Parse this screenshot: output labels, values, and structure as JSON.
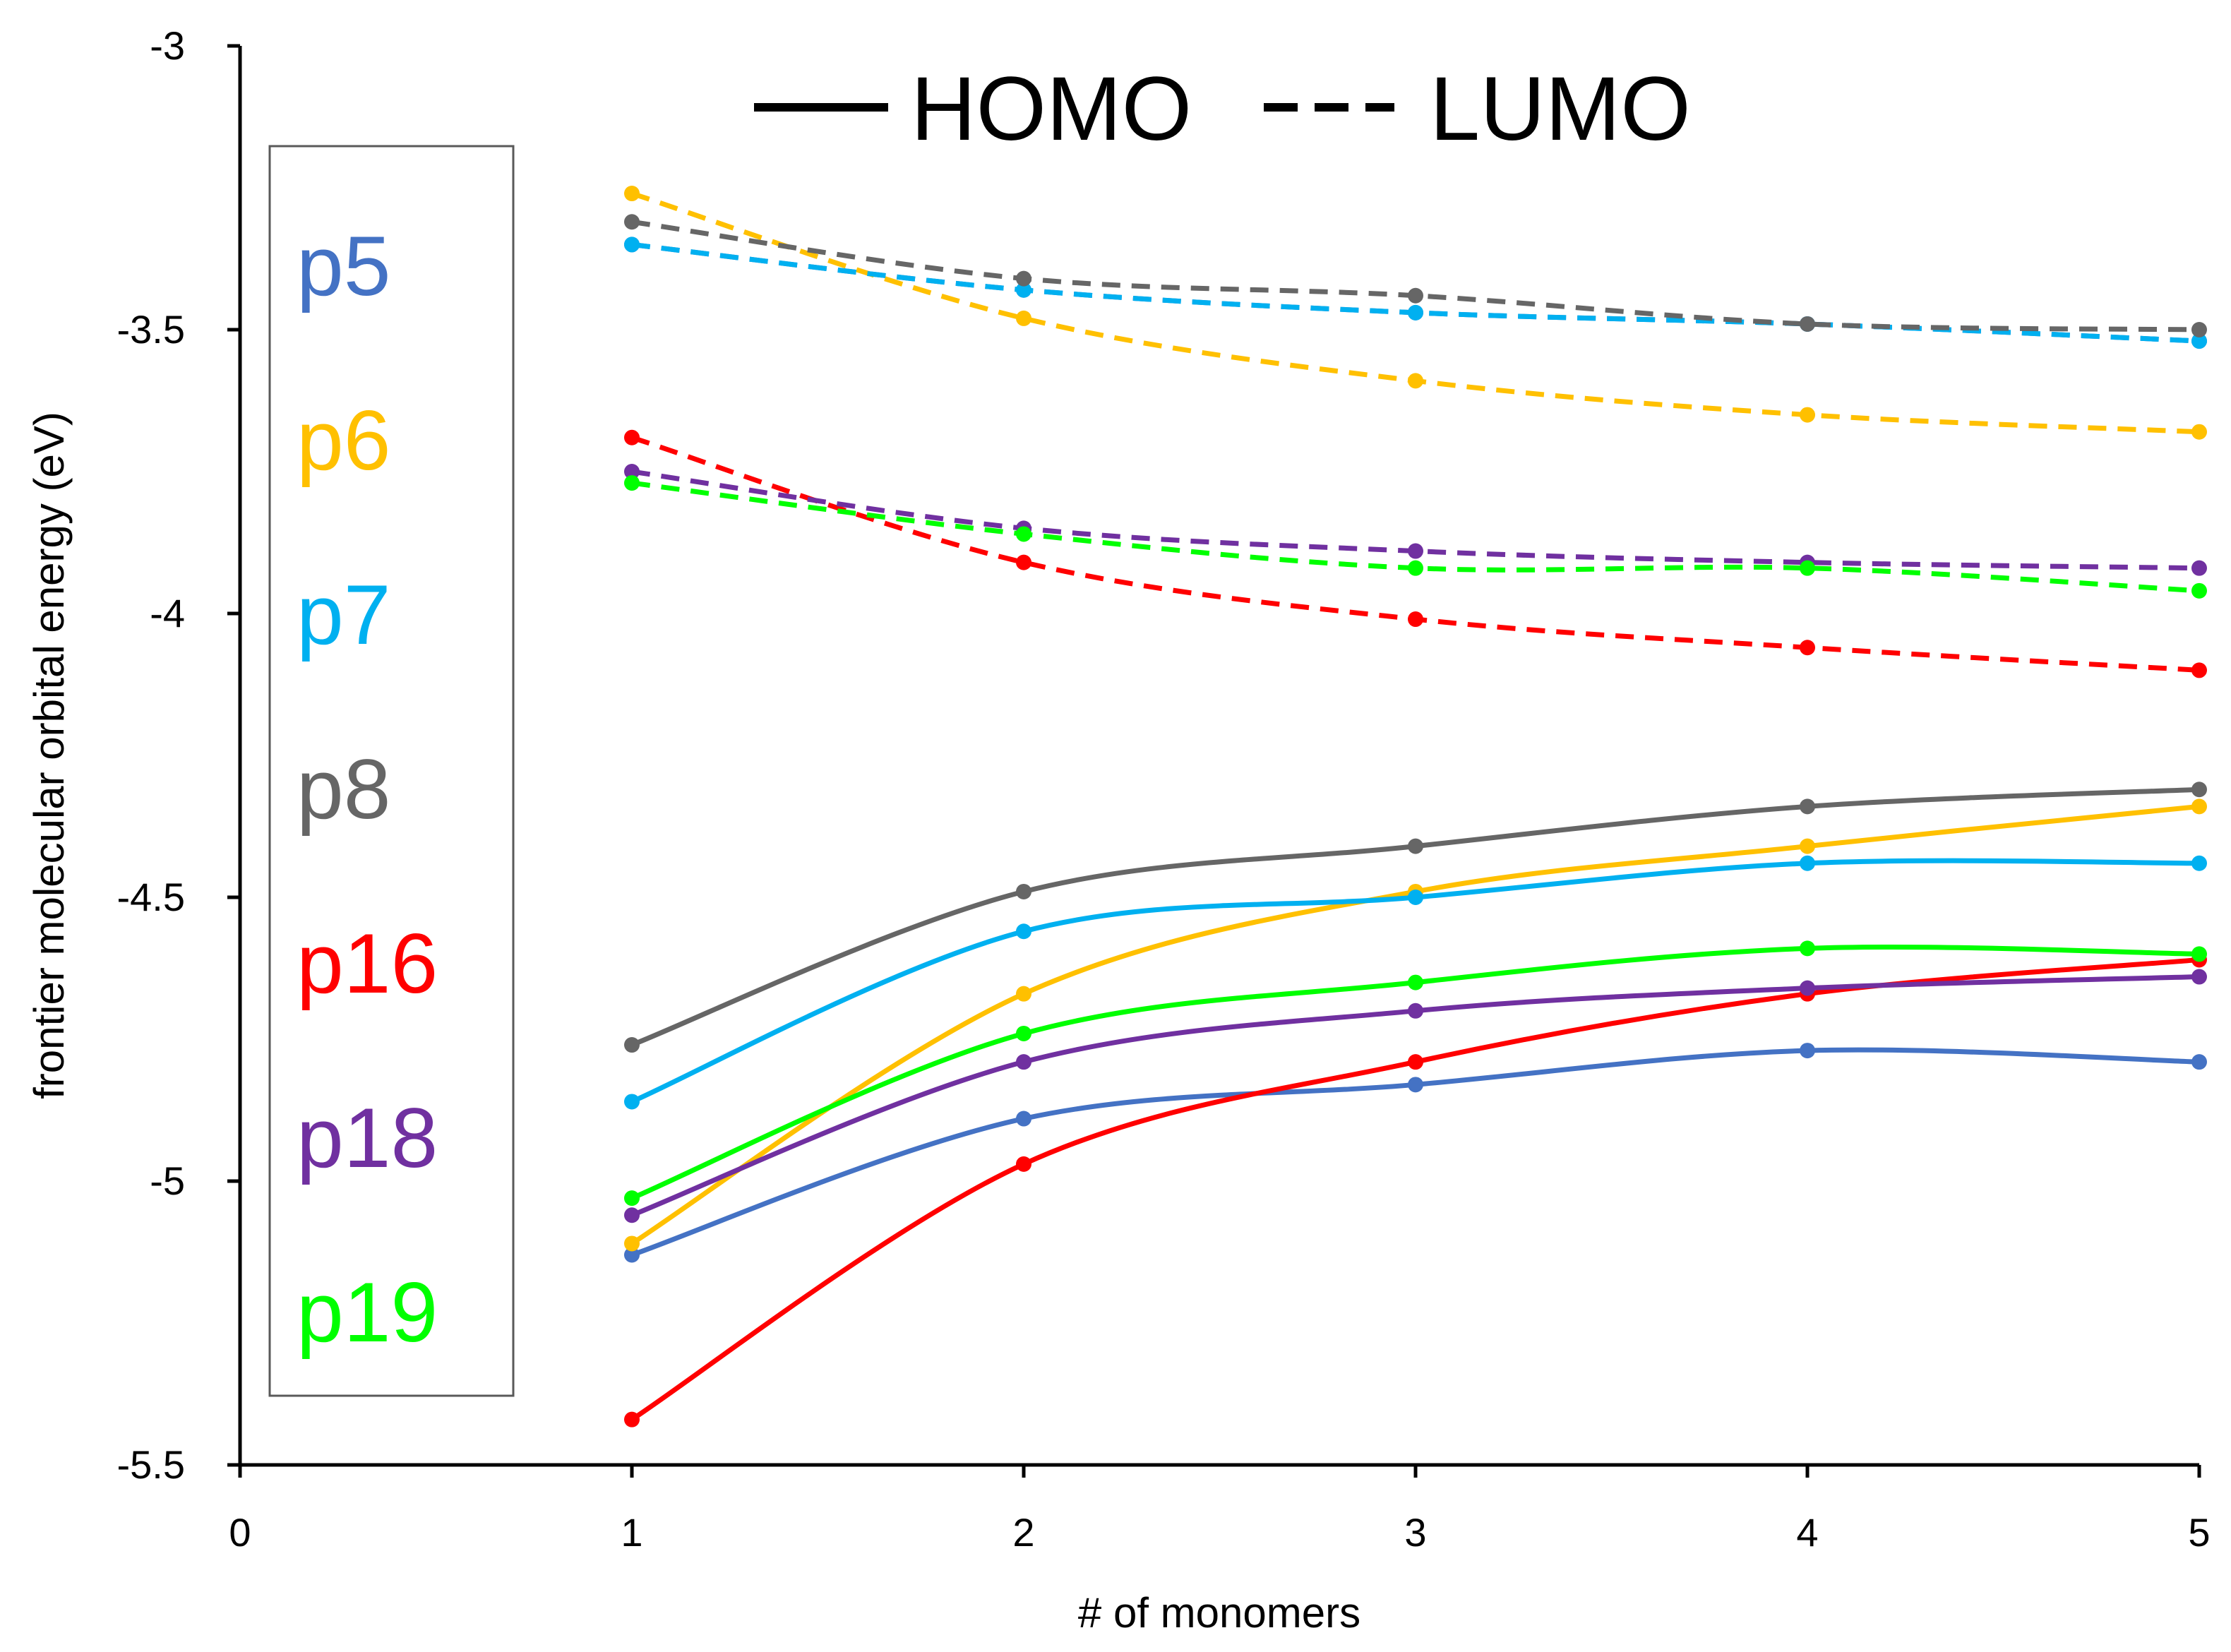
{
  "chart_data": {
    "type": "line",
    "title": "",
    "xlabel": "# of monomers",
    "ylabel": "frontier molecular orbital energy (eV)",
    "xlim": [
      0,
      5
    ],
    "ylim": [
      -5.5,
      -3
    ],
    "x_ticks": [
      "0",
      "1",
      "2",
      "3",
      "4",
      "5"
    ],
    "y_ticks": [
      "-3",
      "-3.5",
      "-4",
      "-4.5",
      "-5",
      "-5.5"
    ],
    "x": [
      1,
      2,
      3,
      4,
      5
    ],
    "line_styles": [
      {
        "label": "HOMO",
        "style": "solid"
      },
      {
        "label": "LUMO",
        "style": "dashed"
      }
    ],
    "series": [
      {
        "name": "p5",
        "color": "#4472C4",
        "homo": [
          -5.13,
          -4.89,
          -4.83,
          -4.77,
          -4.79
        ],
        "lumo": [
          -3.35,
          -3.43,
          -3.47,
          -3.49,
          -3.52
        ]
      },
      {
        "name": "p6",
        "color": "#FFC000",
        "homo": [
          -5.11,
          -4.67,
          -4.49,
          -4.41,
          -4.34
        ],
        "lumo": [
          -3.26,
          -3.48,
          -3.59,
          -3.65,
          -3.68
        ]
      },
      {
        "name": "p7",
        "color": "#00B0F0",
        "homo": [
          -4.86,
          -4.56,
          -4.5,
          -4.44,
          -4.44
        ],
        "lumo": [
          -3.35,
          -3.43,
          -3.47,
          -3.49,
          -3.52
        ]
      },
      {
        "name": "p8",
        "color": "#666666",
        "homo": [
          -4.76,
          -4.49,
          -4.41,
          -4.34,
          -4.31
        ],
        "lumo": [
          -3.31,
          -3.41,
          -3.44,
          -3.49,
          -3.5
        ]
      },
      {
        "name": "p16",
        "color": "#FF0000",
        "homo": [
          -5.42,
          -4.97,
          -4.79,
          -4.67,
          -4.61
        ],
        "lumo": [
          -3.69,
          -3.91,
          -4.01,
          -4.06,
          -4.1
        ]
      },
      {
        "name": "p18",
        "color": "#7030A0",
        "homo": [
          -5.06,
          -4.79,
          -4.7,
          -4.66,
          -4.64
        ],
        "lumo": [
          -3.75,
          -3.85,
          -3.89,
          -3.91,
          -3.92
        ]
      },
      {
        "name": "p19",
        "color": "#00FF00",
        "homo": [
          -5.03,
          -4.74,
          -4.65,
          -4.59,
          -4.6
        ],
        "lumo": [
          -3.77,
          -3.86,
          -3.92,
          -3.92,
          -3.96
        ]
      }
    ]
  }
}
